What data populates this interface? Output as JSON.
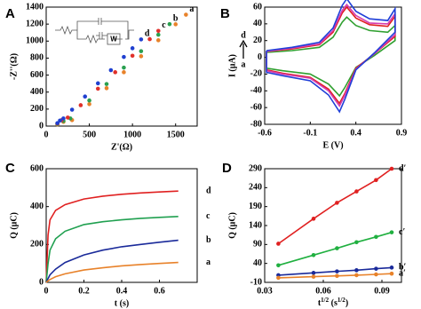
{
  "chart_data": [
    {
      "type": "scatter",
      "panel_label": "A",
      "x_label": "Z'(Ω)",
      "y_label": "-Z''(Ω)",
      "xlim": [
        0,
        1750
      ],
      "xticks": [
        0,
        500,
        1000,
        1500
      ],
      "ylim": [
        0,
        1400
      ],
      "yticks": [
        0,
        200,
        400,
        600,
        800,
        1000,
        1200,
        1400
      ],
      "inset": {
        "element": "W"
      },
      "series": [
        {
          "name": "a",
          "color": "#e8822a",
          "x": [
            130,
            200,
            300,
            500,
            700,
            900,
            1100,
            1300,
            1500,
            1620
          ],
          "values": [
            20,
            50,
            70,
            258,
            446,
            634,
            822,
            1010,
            1198,
            1311
          ]
        },
        {
          "name": "b",
          "color": "#2aa050",
          "x": [
            130,
            200,
            280,
            500,
            700,
            900,
            1100,
            1300,
            1430
          ],
          "values": [
            25,
            60,
            90,
            302,
            495,
            688,
            881,
            1075,
            1200
          ]
        },
        {
          "name": "c",
          "color": "#e0302a",
          "x": [
            130,
            180,
            250,
            400,
            600,
            800,
            1000,
            1200,
            1300
          ],
          "values": [
            30,
            70,
            100,
            246,
            440,
            634,
            828,
            1023,
            1120
          ]
        },
        {
          "name": "d",
          "color": "#2040d0",
          "x": [
            130,
            160,
            200,
            300,
            450,
            600,
            750,
            900,
            1000,
            1100
          ],
          "values": [
            35,
            65,
            90,
            193,
            348,
            503,
            658,
            813,
            916,
            1020
          ]
        }
      ]
    },
    {
      "type": "line",
      "panel_label": "B",
      "x_label": "E (V)",
      "y_label": "I (μA)",
      "xlim": [
        -0.6,
        0.9
      ],
      "xticks": [
        -0.6,
        -0.1,
        0.4,
        0.9
      ],
      "ylim": [
        -80,
        60
      ],
      "yticks": [
        -80,
        -60,
        -40,
        -20,
        0,
        20,
        40,
        60
      ],
      "annotations": [
        "d",
        "a"
      ],
      "series": [
        {
          "color": "#30a030",
          "x": [
            -0.58,
            -0.3,
            0.0,
            0.15,
            0.25,
            0.3,
            0.4,
            0.55,
            0.75,
            0.83,
            0.83,
            0.6,
            0.4,
            0.28,
            0.22,
            0.1,
            -0.1,
            -0.4,
            -0.58,
            -0.58
          ],
          "values": [
            6,
            8,
            12,
            24,
            42,
            48,
            38,
            32,
            30,
            38,
            20,
            2,
            -12,
            -36,
            -46,
            -32,
            -20,
            -16,
            -13,
            6
          ]
        },
        {
          "color": "#e02020",
          "x": [
            -0.58,
            -0.3,
            0.0,
            0.15,
            0.25,
            0.3,
            0.4,
            0.55,
            0.75,
            0.83,
            0.83,
            0.6,
            0.4,
            0.28,
            0.22,
            0.1,
            -0.1,
            -0.4,
            -0.58,
            -0.58
          ],
          "values": [
            7,
            10,
            15,
            30,
            53,
            60,
            47,
            39,
            37,
            49,
            25,
            4,
            -13,
            -43,
            -55,
            -38,
            -24,
            -19,
            -15,
            7
          ]
        },
        {
          "color": "#d43cb0",
          "x": [
            -0.58,
            -0.3,
            0.0,
            0.15,
            0.25,
            0.3,
            0.4,
            0.55,
            0.75,
            0.83,
            0.83,
            0.6,
            0.4,
            0.28,
            0.22,
            0.1,
            -0.1,
            -0.4,
            -0.58,
            -0.58
          ],
          "values": [
            7,
            11,
            16,
            32,
            56,
            63,
            50,
            41,
            40,
            52,
            27,
            4,
            -14,
            -45,
            -58,
            -40,
            -25,
            -20,
            -16,
            7
          ]
        },
        {
          "color": "#1f3fd8",
          "x": [
            -0.58,
            -0.3,
            0.0,
            0.15,
            0.25,
            0.3,
            0.4,
            0.55,
            0.75,
            0.83,
            0.83,
            0.6,
            0.4,
            0.28,
            0.22,
            0.1,
            -0.1,
            -0.4,
            -0.58,
            -0.58
          ],
          "values": [
            8,
            12,
            18,
            35,
            62,
            70,
            55,
            46,
            44,
            58,
            30,
            5,
            -15,
            -50,
            -65,
            -45,
            -28,
            -22,
            -18,
            8
          ]
        }
      ]
    },
    {
      "type": "line",
      "panel_label": "C",
      "x_label": "t (s)",
      "y_label": "Q (μC)",
      "xlim": [
        0,
        0.8
      ],
      "xticks": [
        0,
        0.2,
        0.4,
        0.6
      ],
      "ylim": [
        0,
        600
      ],
      "yticks": [
        0,
        200,
        400,
        600
      ],
      "x": [
        0,
        0.01,
        0.02,
        0.05,
        0.1,
        0.2,
        0.3,
        0.4,
        0.5,
        0.6,
        0.7
      ],
      "series": [
        {
          "name": "d",
          "color": "#e02020",
          "values": [
            0,
            250,
            330,
            380,
            410,
            440,
            455,
            465,
            472,
            477,
            482
          ]
        },
        {
          "name": "c",
          "color": "#20a050",
          "values": [
            0,
            100,
            170,
            230,
            270,
            305,
            320,
            330,
            338,
            343,
            348
          ]
        },
        {
          "name": "b",
          "color": "#1a2a9a",
          "values": [
            0,
            20,
            40,
            70,
            105,
            145,
            170,
            188,
            200,
            212,
            222
          ]
        },
        {
          "name": "a",
          "color": "#e8822a",
          "values": [
            0,
            8,
            15,
            30,
            45,
            65,
            77,
            87,
            94,
            100,
            105
          ]
        }
      ]
    },
    {
      "type": "line",
      "markers": true,
      "panel_label": "D",
      "x_label": [
        "t",
        "1/2",
        " (s",
        "1/2",
        ")"
      ],
      "y_label": "Q (μC)",
      "xlim": [
        0.03,
        0.1
      ],
      "xticks": [
        0.03,
        0.06,
        0.09
      ],
      "ylim": [
        -10,
        290
      ],
      "yticks": [
        -10,
        40,
        90,
        140,
        190,
        240,
        290
      ],
      "x": [
        0.037,
        0.055,
        0.067,
        0.077,
        0.087,
        0.095
      ],
      "series": [
        {
          "name": "d′",
          "color": "#e02020",
          "values": [
            92,
            158,
            200,
            230,
            260,
            290
          ]
        },
        {
          "name": "c′",
          "color": "#20b040",
          "values": [
            35,
            62,
            80,
            96,
            110,
            122
          ]
        },
        {
          "name": "b′",
          "color": "#1a2a9a",
          "values": [
            9,
            15,
            19,
            22,
            26,
            29
          ]
        },
        {
          "name": "a′",
          "color": "#e8822a",
          "values": [
            2,
            5,
            7,
            9,
            11,
            13
          ]
        }
      ]
    }
  ]
}
